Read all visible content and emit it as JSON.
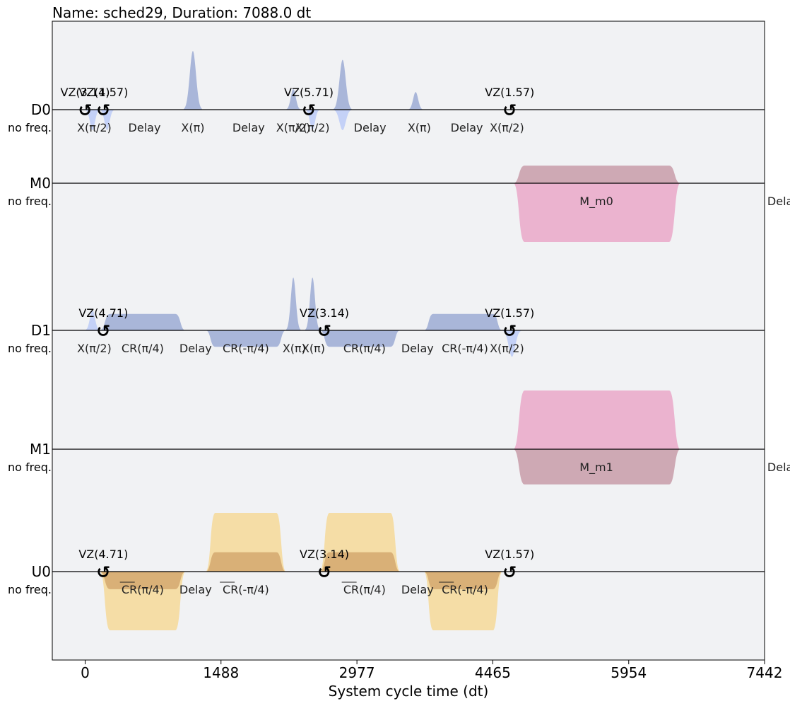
{
  "chart_data": {
    "type": "pulse_schedule",
    "title": "Name: sched29, Duration: 7088.0 dt",
    "xlabel": "System cycle time (dt)",
    "xlim": [
      -360,
      7442
    ],
    "xticks": [
      0,
      1488,
      2977,
      4465,
      5954,
      7442
    ],
    "colors": {
      "drive": "#a9b6d9",
      "drive_light": "#c4d1f7",
      "measure": "#ebb3cf",
      "measure_dark": "#cea9b4",
      "control": "#f5dda6",
      "control_dark": "#d9b077",
      "panel": "#f1f2f4"
    },
    "channels": [
      {
        "id": "D0",
        "name": "D0",
        "freq": "no freq.",
        "pulses": [
          {
            "kind": "gauss",
            "start": 0,
            "end": 160,
            "amp": -0.35,
            "color": "drive_light"
          },
          {
            "kind": "gauss",
            "start": 160,
            "end": 320,
            "amp": -0.35,
            "color": "drive_light"
          },
          {
            "kind": "gauss",
            "start": 1080,
            "end": 1280,
            "amp": 1.0,
            "color": "drive"
          },
          {
            "kind": "gauss",
            "start": 2200,
            "end": 2360,
            "amp": 0.35,
            "color": "drive"
          },
          {
            "kind": "gauss",
            "start": 2410,
            "end": 2570,
            "amp": -0.35,
            "color": "drive_light"
          },
          {
            "kind": "gauss",
            "start": 2720,
            "end": 2920,
            "amp": 0.85,
            "color": "drive"
          },
          {
            "kind": "gauss",
            "start": 2720,
            "end": 2920,
            "amp": -0.35,
            "color": "drive_light"
          },
          {
            "kind": "gauss",
            "start": 3540,
            "end": 3700,
            "amp": 0.3,
            "color": "drive"
          }
        ],
        "vz": [
          {
            "x": 0,
            "label": "VZ(3.14)"
          },
          {
            "x": 200,
            "label": "VZ(1.57)"
          },
          {
            "x": 2450,
            "label": "VZ(5.71)"
          },
          {
            "x": 4650,
            "label": "VZ(1.57)"
          }
        ],
        "labels": [
          {
            "x": 100,
            "text": "X(π/2)"
          },
          {
            "x": 650,
            "text": "Delay"
          },
          {
            "x": 1180,
            "text": "X(π)"
          },
          {
            "x": 1790,
            "text": "Delay"
          },
          {
            "x": 2280,
            "text": "X(π/2)"
          },
          {
            "x": 2490,
            "text": "X(π/2)"
          },
          {
            "x": 3120,
            "text": "Delay"
          },
          {
            "x": 3660,
            "text": "X(π)"
          },
          {
            "x": 4180,
            "text": "Delay"
          },
          {
            "x": 4620,
            "text": "X(π/2)"
          }
        ]
      },
      {
        "id": "M0",
        "name": "M0",
        "freq": "no freq.",
        "pulses": [
          {
            "kind": "gsquare",
            "start": 4690,
            "end": 6520,
            "amp": 0.3,
            "color": "measure_dark"
          },
          {
            "kind": "gsquare",
            "start": 4690,
            "end": 6520,
            "amp": -1.0,
            "color": "measure"
          }
        ],
        "vz": [],
        "labels": [
          {
            "x": 5600,
            "text": "M_m0"
          },
          {
            "x": 7650,
            "text": "Delay"
          }
        ]
      },
      {
        "id": "D1",
        "name": "D1",
        "freq": "no freq.",
        "pulses": [
          {
            "kind": "gauss",
            "start": 0,
            "end": 160,
            "amp": 0.35,
            "color": "drive_light"
          },
          {
            "kind": "gsquare",
            "start": 160,
            "end": 1100,
            "amp": 0.28,
            "color": "drive"
          },
          {
            "kind": "gsquare",
            "start": 1320,
            "end": 2200,
            "amp": -0.28,
            "color": "drive"
          },
          {
            "kind": "gauss",
            "start": 2200,
            "end": 2360,
            "amp": 0.9,
            "color": "drive"
          },
          {
            "kind": "gauss",
            "start": 2410,
            "end": 2570,
            "amp": 0.9,
            "color": "drive"
          },
          {
            "kind": "gsquare",
            "start": 2570,
            "end": 3450,
            "amp": -0.28,
            "color": "drive"
          },
          {
            "kind": "gsquare",
            "start": 3710,
            "end": 4570,
            "amp": 0.28,
            "color": "drive"
          },
          {
            "kind": "gauss",
            "start": 4570,
            "end": 4780,
            "amp": -0.45,
            "color": "drive_light"
          }
        ],
        "vz": [
          {
            "x": 200,
            "label": "VZ(4.71)"
          },
          {
            "x": 2620,
            "label": "VZ(3.14)"
          },
          {
            "x": 4650,
            "label": "VZ(1.57)"
          }
        ],
        "labels": [
          {
            "x": 100,
            "text": "X(π/2)"
          },
          {
            "x": 630,
            "text": "CR(π/4)"
          },
          {
            "x": 1210,
            "text": "Delay"
          },
          {
            "x": 1760,
            "text": "CR(-π/4)"
          },
          {
            "x": 2290,
            "text": "X(π)"
          },
          {
            "x": 2500,
            "text": "X(π)"
          },
          {
            "x": 3060,
            "text": "CR(π/4)"
          },
          {
            "x": 3640,
            "text": "Delay"
          },
          {
            "x": 4160,
            "text": "CR(-π/4)"
          },
          {
            "x": 4620,
            "text": "X(π/2)"
          }
        ]
      },
      {
        "id": "M1",
        "name": "M1",
        "freq": "no freq.",
        "pulses": [
          {
            "kind": "gsquare",
            "start": 4690,
            "end": 6520,
            "amp": 1.0,
            "color": "measure"
          },
          {
            "kind": "gsquare",
            "start": 4690,
            "end": 6520,
            "amp": -0.6,
            "color": "measure_dark"
          }
        ],
        "vz": [],
        "labels": [
          {
            "x": 5600,
            "text": "M_m1"
          },
          {
            "x": 7650,
            "text": "Delay"
          }
        ]
      },
      {
        "id": "U0",
        "name": "U0",
        "freq": "no freq.",
        "pulses": [
          {
            "kind": "gsquare",
            "start": 160,
            "end": 1100,
            "amp": -1.0,
            "color": "control"
          },
          {
            "kind": "gsquare",
            "start": 160,
            "end": 1100,
            "amp": -0.3,
            "color": "control_dark"
          },
          {
            "kind": "gsquare",
            "start": 1320,
            "end": 2200,
            "amp": 1.0,
            "color": "control"
          },
          {
            "kind": "gsquare",
            "start": 1320,
            "end": 2200,
            "amp": 0.33,
            "color": "control_dark"
          },
          {
            "kind": "gsquare",
            "start": 2570,
            "end": 3450,
            "amp": 1.0,
            "color": "control"
          },
          {
            "kind": "gsquare",
            "start": 2570,
            "end": 3450,
            "amp": 0.33,
            "color": "control_dark"
          },
          {
            "kind": "gsquare",
            "start": 3710,
            "end": 4570,
            "amp": -1.0,
            "color": "control"
          },
          {
            "kind": "gsquare",
            "start": 3710,
            "end": 4570,
            "amp": -0.3,
            "color": "control_dark"
          }
        ],
        "vz": [
          {
            "x": 200,
            "label": "VZ(4.71)"
          },
          {
            "x": 2620,
            "label": "VZ(3.14)"
          },
          {
            "x": 4650,
            "label": "VZ(1.57)"
          }
        ],
        "labels": [
          {
            "x": 630,
            "text": "CR(π/4)",
            "overline": "CR"
          },
          {
            "x": 1210,
            "text": "Delay"
          },
          {
            "x": 1760,
            "text": "CR(-π/4)",
            "overline": "CR"
          },
          {
            "x": 3060,
            "text": "CR(π/4)",
            "overline": "CR"
          },
          {
            "x": 3640,
            "text": "Delay"
          },
          {
            "x": 4160,
            "text": "CR(-π/4)",
            "overline": "CR"
          }
        ]
      }
    ]
  }
}
